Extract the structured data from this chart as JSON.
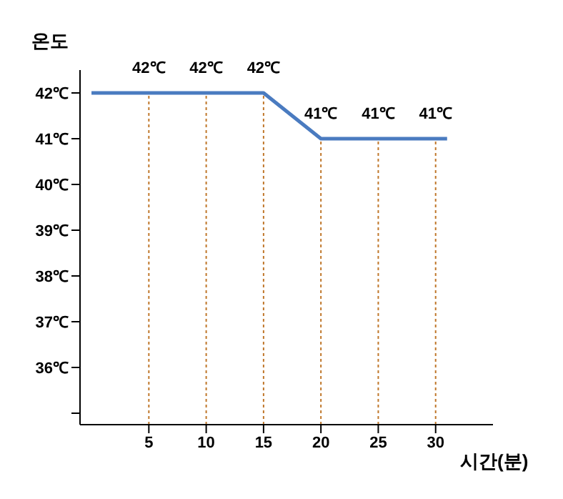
{
  "chart_data": {
    "type": "line",
    "xlabel": "시간(분)",
    "ylabel": "온도",
    "x": [
      0,
      5,
      10,
      15,
      20,
      25,
      30,
      31
    ],
    "series": [
      {
        "color": "#4a7bc0",
        "values": [
          42,
          42,
          42,
          42,
          41,
          41,
          41,
          41
        ],
        "value_labels": [
          null,
          "42℃",
          "42℃",
          "42℃",
          "41℃",
          "41℃",
          "41℃",
          null
        ]
      }
    ],
    "xlim": [
      -1,
      35
    ],
    "xticks": [
      5,
      10,
      15,
      20,
      25,
      30
    ],
    "ylim": [
      34.75,
      42.5
    ],
    "yticks": [
      {
        "value": 35,
        "label": null
      },
      {
        "value": 36,
        "label": "36℃"
      },
      {
        "value": 37,
        "label": "37℃"
      },
      {
        "value": 38,
        "label": "38℃"
      },
      {
        "value": 39,
        "label": "39℃"
      },
      {
        "value": 40,
        "label": "40℃"
      },
      {
        "value": 41,
        "label": "41℃"
      },
      {
        "value": 42,
        "label": "42℃"
      }
    ],
    "grid": "x",
    "marker": "none",
    "line_style": "solid"
  }
}
